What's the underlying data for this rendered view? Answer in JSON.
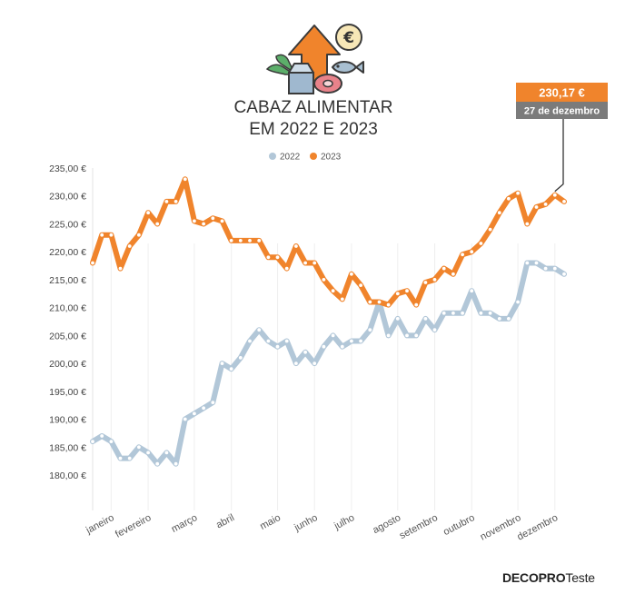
{
  "chart_data": {
    "type": "line",
    "title": [
      "CABAZ ALIMENTAR",
      "EM 2022 E 2023"
    ],
    "y_ticks": [
      180,
      185,
      190,
      195,
      200,
      205,
      210,
      215,
      220,
      225,
      230,
      235
    ],
    "y_tick_labels": [
      "180,00 €",
      "185,00 €",
      "190,00 €",
      "195,00 €",
      "200,00 €",
      "205,00 €",
      "210,00 €",
      "215,00 €",
      "220,00 €",
      "225,00 €",
      "230,00 €",
      "235,00 €"
    ],
    "ylim": [
      176,
      236
    ],
    "x_unit": "week",
    "xlim": [
      1,
      52
    ],
    "months": [
      {
        "label": "janeiro",
        "week": 3
      },
      {
        "label": "fevereiro",
        "week": 7
      },
      {
        "label": "março",
        "week": 12
      },
      {
        "label": "abril",
        "week": 16
      },
      {
        "label": "maio",
        "week": 21
      },
      {
        "label": "junho",
        "week": 25
      },
      {
        "label": "julho",
        "week": 29
      },
      {
        "label": "agosto",
        "week": 34
      },
      {
        "label": "setembro",
        "week": 38
      },
      {
        "label": "outubro",
        "week": 42
      },
      {
        "label": "novembro",
        "week": 47
      },
      {
        "label": "dezembro",
        "week": 51
      }
    ],
    "legend": {
      "placement": "top-center"
    },
    "series": [
      {
        "name": "2022",
        "color": "#b2c7d8",
        "x": [
          1,
          2,
          3,
          4,
          5,
          6,
          7,
          8,
          9,
          10,
          11,
          12,
          13,
          14,
          15,
          16,
          17,
          18,
          19,
          20,
          21,
          22,
          23,
          24,
          25,
          26,
          27,
          28,
          29,
          30,
          31,
          32,
          33,
          34,
          35,
          36,
          37,
          38,
          39,
          40,
          41,
          42,
          43,
          44,
          45,
          46,
          47,
          48,
          49,
          50,
          51,
          52
        ],
        "values": [
          186,
          187,
          186,
          183,
          183,
          185,
          184,
          182,
          184,
          182,
          190,
          191,
          192,
          193,
          200,
          199,
          201,
          204,
          206,
          204,
          203,
          204,
          200,
          202,
          200,
          203,
          205,
          203,
          204,
          204,
          206,
          211,
          205,
          208,
          205,
          205,
          208,
          206,
          209,
          209,
          209,
          213,
          209,
          209,
          208,
          208,
          211,
          218,
          218,
          217,
          217,
          216
        ]
      },
      {
        "name": "2023",
        "color": "#f0842c",
        "x": [
          1,
          2,
          3,
          4,
          5,
          6,
          7,
          8,
          9,
          10,
          11,
          12,
          13,
          14,
          15,
          16,
          17,
          18,
          19,
          20,
          21,
          22,
          23,
          24,
          25,
          26,
          27,
          28,
          29,
          30,
          31,
          32,
          33,
          34,
          35,
          36,
          37,
          38,
          39,
          40,
          41,
          42,
          43,
          44,
          45,
          46,
          47,
          48,
          49,
          50,
          51,
          52
        ],
        "values": [
          218,
          223,
          223,
          217,
          221,
          223,
          227,
          225,
          229,
          229,
          233,
          225.5,
          225,
          226,
          225.5,
          222,
          222,
          222,
          222,
          219,
          219,
          217,
          221,
          218,
          218,
          215,
          213,
          211.5,
          216,
          214,
          211,
          211,
          210.5,
          212.5,
          213,
          210.5,
          214.5,
          215,
          217,
          216,
          219.5,
          220,
          221.5,
          224,
          227,
          229.5,
          230.5,
          225,
          228,
          228.5,
          230.17,
          229
        ]
      }
    ],
    "annotation": {
      "value": "230,17 €",
      "date": "27 de dezembro",
      "series": "2023",
      "week": 51
    }
  },
  "brand": {
    "part1": "DECO",
    "part2": "PRO",
    "part3": "Teste"
  }
}
